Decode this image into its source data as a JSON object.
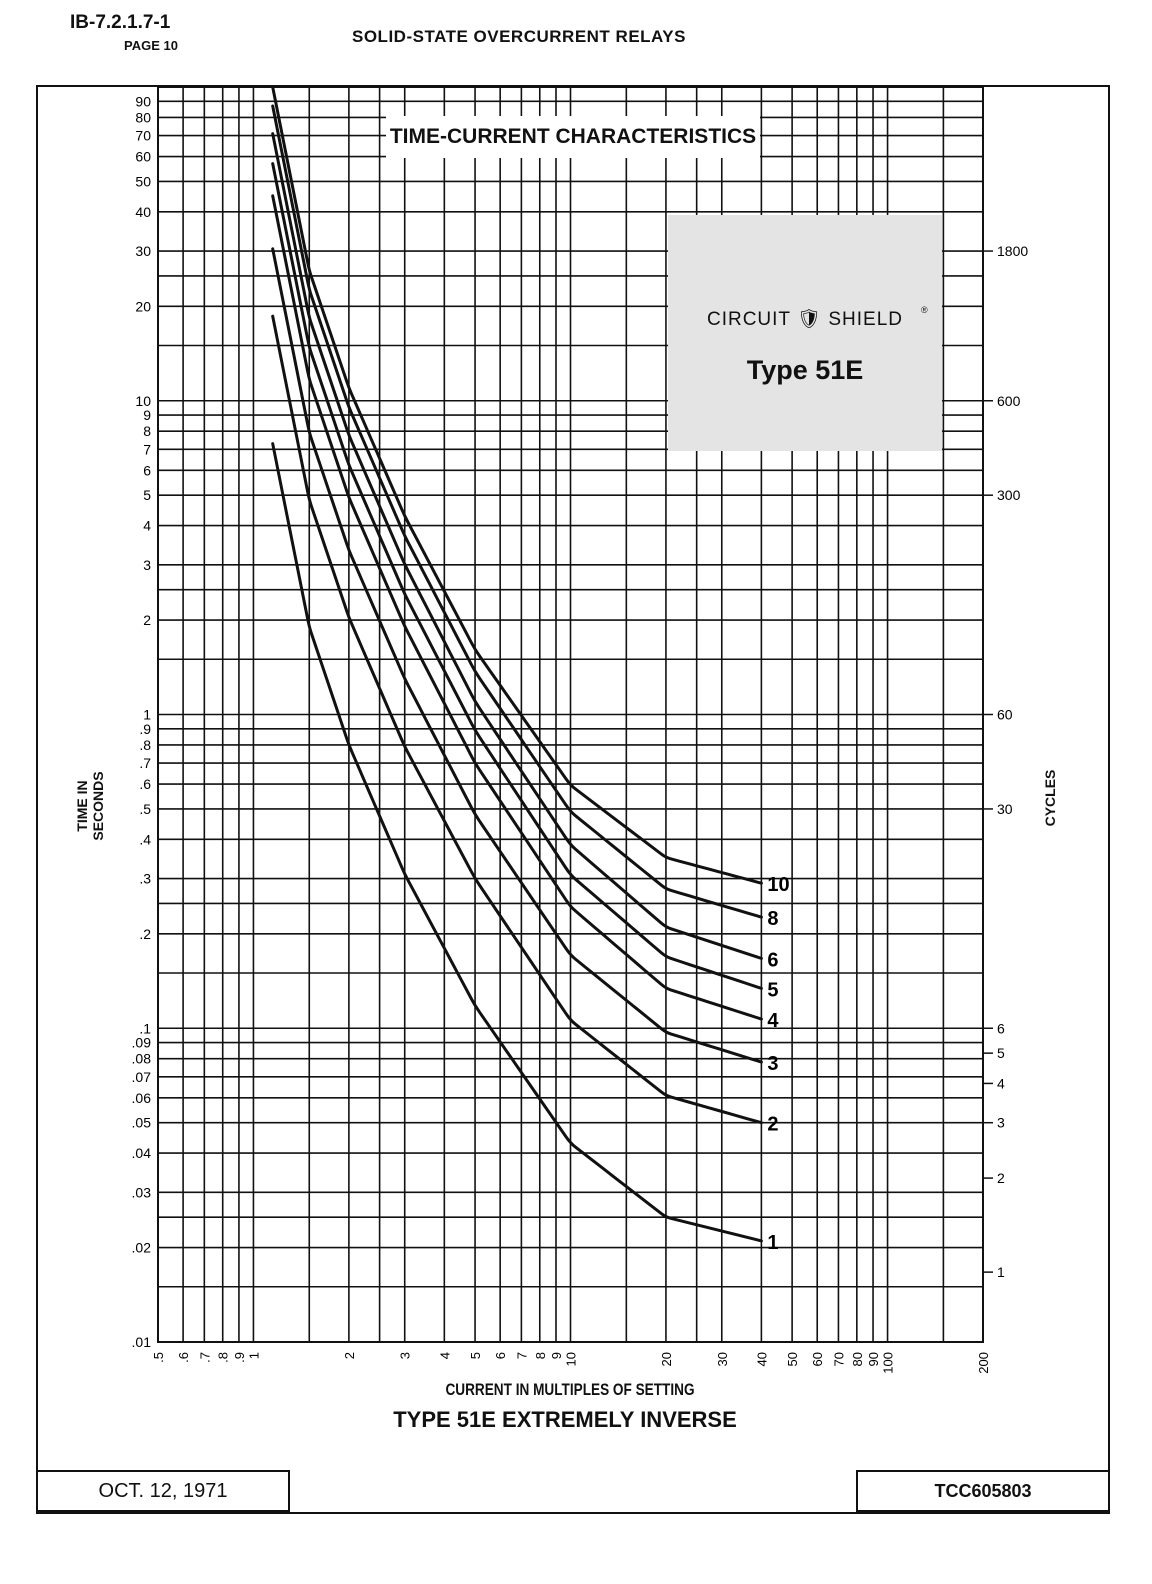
{
  "header": {
    "doc_id": "IB-7.2.1.7-1",
    "page": "PAGE 10",
    "title": "SOLID-STATE OVERCURRENT RELAYS"
  },
  "footer": {
    "date": "OCT. 12, 1971",
    "tcc": "TCC605803"
  },
  "logo": {
    "brand_left": "CIRCUIT",
    "brand_right": "SHIELD",
    "registered": "®",
    "type": "Type 51E"
  },
  "chart_data": {
    "type": "line",
    "title": "TIME-CURRENT  CHARACTERISTICS",
    "subtitle": "TYPE 51E EXTREMELY INVERSE",
    "xlabel": "CURRENT IN MULTIPLES OF SETTING",
    "ylabel": "TIME IN SECONDS",
    "y2label": "CYCLES",
    "xscale": "log",
    "yscale": "log",
    "xlim": [
      0.5,
      200
    ],
    "ylim": [
      0.01,
      100
    ],
    "x_ticks": [
      [
        0.5,
        ".5"
      ],
      [
        0.6,
        ".6"
      ],
      [
        0.7,
        ".7"
      ],
      [
        0.8,
        ".8"
      ],
      [
        0.9,
        ".9"
      ],
      [
        1,
        "1"
      ],
      [
        2,
        "2"
      ],
      [
        3,
        "3"
      ],
      [
        4,
        "4"
      ],
      [
        5,
        "5"
      ],
      [
        6,
        "6"
      ],
      [
        7,
        "7"
      ],
      [
        8,
        "8"
      ],
      [
        9,
        "9"
      ],
      [
        10,
        "10"
      ],
      [
        20,
        "20"
      ],
      [
        30,
        "30"
      ],
      [
        40,
        "40"
      ],
      [
        50,
        "50"
      ],
      [
        60,
        "60"
      ],
      [
        70,
        "70"
      ],
      [
        80,
        "80"
      ],
      [
        90,
        "90"
      ],
      [
        100,
        "100"
      ],
      [
        200,
        "200"
      ]
    ],
    "y_ticks": [
      [
        90,
        "90"
      ],
      [
        80,
        "80"
      ],
      [
        70,
        "70"
      ],
      [
        60,
        "60"
      ],
      [
        50,
        "50"
      ],
      [
        40,
        "40"
      ],
      [
        30,
        "30"
      ],
      [
        20,
        "20"
      ],
      [
        10,
        "10"
      ],
      [
        9,
        "9"
      ],
      [
        8,
        "8"
      ],
      [
        7,
        "7"
      ],
      [
        6,
        "6"
      ],
      [
        5,
        "5"
      ],
      [
        4,
        "4"
      ],
      [
        3,
        "3"
      ],
      [
        2,
        "2"
      ],
      [
        1,
        "1"
      ],
      [
        0.9,
        ".9"
      ],
      [
        0.8,
        ".8"
      ],
      [
        0.7,
        ".7"
      ],
      [
        0.6,
        ".6"
      ],
      [
        0.5,
        ".5"
      ],
      [
        0.4,
        ".4"
      ],
      [
        0.3,
        ".3"
      ],
      [
        0.2,
        ".2"
      ],
      [
        0.1,
        ".1"
      ],
      [
        0.09,
        ".09"
      ],
      [
        0.08,
        ".08"
      ],
      [
        0.07,
        ".07"
      ],
      [
        0.06,
        ".06"
      ],
      [
        0.05,
        ".05"
      ],
      [
        0.04,
        ".04"
      ],
      [
        0.03,
        ".03"
      ],
      [
        0.02,
        ".02"
      ],
      [
        0.01,
        ".01"
      ]
    ],
    "y2_ticks": [
      [
        30,
        "1800"
      ],
      [
        10,
        "600"
      ],
      [
        5,
        "300"
      ],
      [
        1,
        "60"
      ],
      [
        0.5,
        "30"
      ],
      [
        0.1,
        "6"
      ],
      [
        0.0833,
        "5"
      ],
      [
        0.0667,
        "4"
      ],
      [
        0.05,
        "3"
      ],
      [
        0.0333,
        "2"
      ],
      [
        0.0167,
        "1"
      ]
    ],
    "grid": true,
    "x": [
      1.15,
      1.5,
      2,
      3,
      5,
      10,
      20,
      40
    ],
    "series": [
      {
        "name": "1",
        "values": [
          7.3,
          1.9,
          0.8,
          0.31,
          0.118,
          0.043,
          0.025,
          0.021
        ]
      },
      {
        "name": "2",
        "values": [
          18.6,
          4.83,
          2.04,
          0.79,
          0.3,
          0.106,
          0.061,
          0.05
        ]
      },
      {
        "name": "3",
        "values": [
          30.5,
          7.92,
          3.34,
          1.3,
          0.48,
          0.171,
          0.097,
          0.078
        ]
      },
      {
        "name": "4",
        "values": [
          45,
          11.7,
          4.92,
          1.91,
          0.7,
          0.244,
          0.134,
          0.107
        ]
      },
      {
        "name": "5",
        "values": [
          57,
          14.8,
          6.24,
          2.42,
          0.89,
          0.308,
          0.169,
          0.134
        ]
      },
      {
        "name": "6",
        "values": [
          71,
          18.4,
          7.77,
          3.01,
          1.1,
          0.384,
          0.21,
          0.167
        ]
      },
      {
        "name": "8",
        "values": [
          87,
          22.6,
          9.54,
          3.71,
          1.37,
          0.49,
          0.278,
          0.226
        ]
      },
      {
        "name": "10",
        "values": [
          100,
          26,
          11,
          4.29,
          1.61,
          0.595,
          0.35,
          0.29
        ]
      }
    ]
  }
}
